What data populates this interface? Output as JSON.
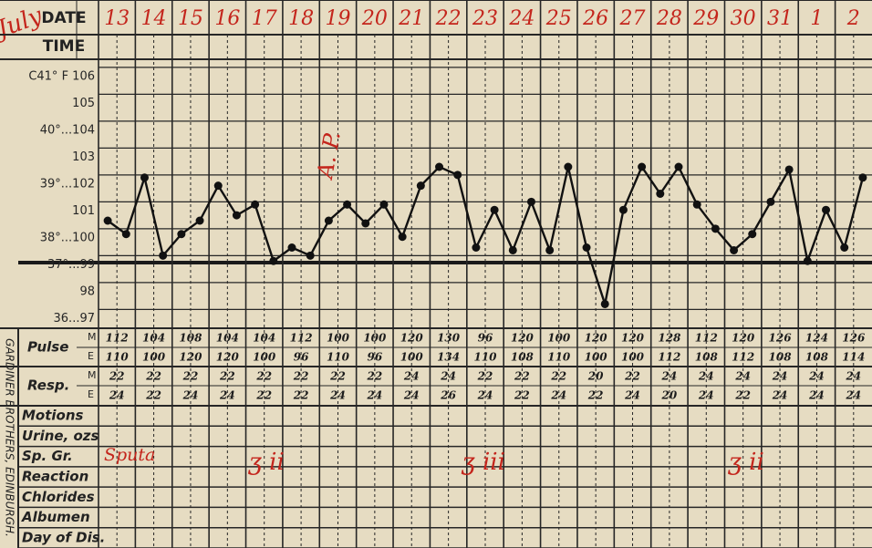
{
  "header": {
    "month": "July",
    "date_label": "DATE",
    "time_label": "TIME"
  },
  "dates": [
    "13",
    "14",
    "15",
    "16",
    "17",
    "18",
    "19",
    "20",
    "21",
    "22",
    "23",
    "24",
    "25",
    "26",
    "27",
    "28",
    "29",
    "30",
    "31",
    "1",
    "2"
  ],
  "temperature": {
    "ylim": [
      96.3,
      106.3
    ],
    "yticks": [
      {
        "value": 106,
        "label": "C41° F 106"
      },
      105,
      {
        "value": 104,
        "label": "40°...104"
      },
      103,
      {
        "value": 102,
        "label": "39°...102"
      },
      101,
      {
        "value": 100,
        "label": "38°...100"
      },
      {
        "value": 99,
        "label": "37°...99"
      },
      98,
      {
        "value": 97,
        "label": "36...97"
      }
    ],
    "values": [
      100.3,
      99.8,
      101.9,
      99.0,
      99.8,
      100.3,
      101.6,
      100.5,
      100.9,
      98.8,
      99.3,
      99.0,
      100.3,
      100.9,
      100.2,
      100.9,
      99.7,
      101.6,
      102.3,
      102.0,
      99.3,
      100.7,
      99.2,
      101.0,
      99.2,
      102.3,
      99.3,
      97.2,
      100.7,
      102.3,
      101.3,
      102.3,
      100.9,
      100.0,
      99.2,
      99.8,
      101.0,
      102.2,
      98.8,
      100.7,
      99.3,
      101.9
    ]
  },
  "pulse": {
    "label": "Pulse",
    "morning_label": "M",
    "evening_label": "E",
    "morning": [
      112,
      104,
      108,
      104,
      104,
      112,
      100,
      100,
      120,
      130,
      96,
      120,
      100,
      120,
      120,
      128,
      112,
      120,
      126,
      124,
      126
    ],
    "evening": [
      110,
      100,
      120,
      120,
      100,
      96,
      110,
      96,
      100,
      134,
      110,
      108,
      110,
      100,
      100,
      112,
      108,
      112,
      108,
      108,
      114
    ]
  },
  "resp": {
    "label": "Resp.",
    "morning_label": "M",
    "evening_label": "E",
    "morning": [
      22,
      22,
      22,
      22,
      22,
      22,
      22,
      22,
      24,
      24,
      22,
      22,
      22,
      20,
      22,
      24,
      24,
      24,
      24,
      24,
      24
    ],
    "evening": [
      24,
      22,
      24,
      24,
      22,
      22,
      24,
      24,
      24,
      26,
      24,
      22,
      24,
      22,
      24,
      20,
      24,
      22,
      24,
      24,
      24
    ]
  },
  "rows": [
    "Motions",
    "Urine, ozs",
    "Sp. Gr.",
    "Reaction",
    "Chlorides",
    "Albumen",
    "Day of Dis."
  ],
  "annotations": {
    "vertical_note": "A. P.",
    "sputa": "Sputa",
    "dose_1": "ʒ ii",
    "dose_2": "ʒ iii",
    "dose_3": "ʒ ii"
  },
  "printer": "GARDINER BROTHERS, EDINBURGH."
}
